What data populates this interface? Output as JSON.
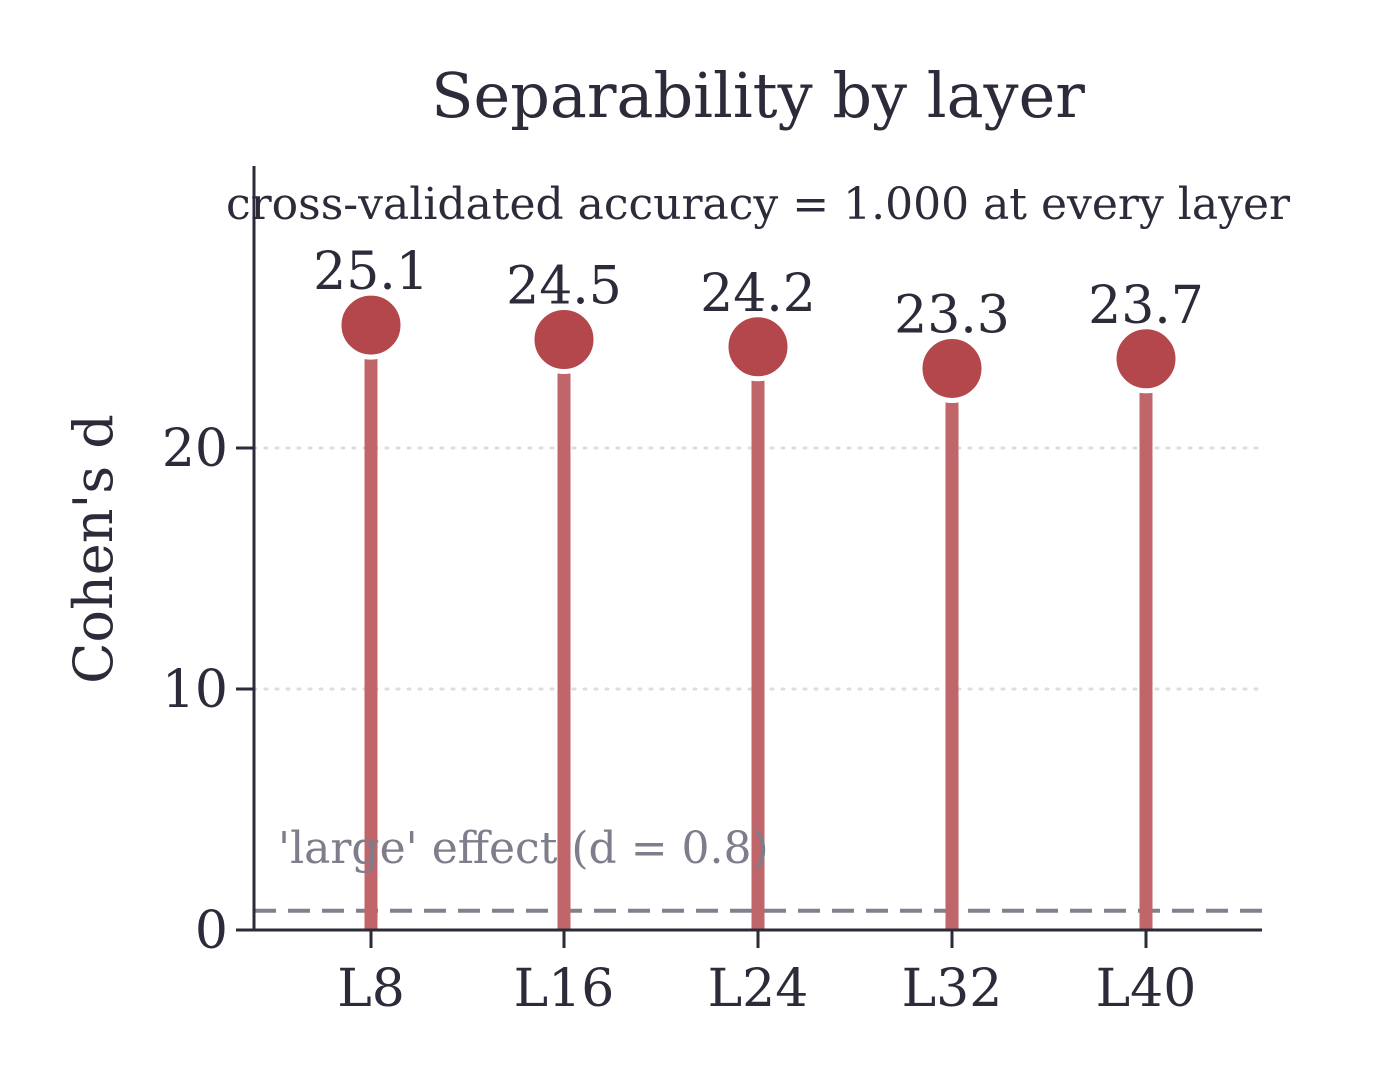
{
  "chart_data": {
    "type": "lollipop",
    "title": "Separability by layer",
    "subtitle": "cross-validated accuracy = 1.000 at every layer",
    "xlabel": "",
    "ylabel": "Cohen's d",
    "categories": [
      "L8",
      "L16",
      "L24",
      "L32",
      "L40"
    ],
    "values": [
      25.1,
      24.5,
      24.2,
      23.3,
      23.7
    ],
    "data_labels": [
      "25.1",
      "24.5",
      "24.2",
      "23.3",
      "23.7"
    ],
    "ylim": [
      0,
      31.7
    ],
    "yticks": [
      0,
      10,
      20
    ],
    "ytick_labels": [
      "0",
      "10",
      "20"
    ],
    "grid": "y-dotted at ticks",
    "reference_line": {
      "value": 0.8,
      "label": "'large' effect (d = 0.8)",
      "style": "dashed"
    },
    "colors": {
      "stem": "#c0656a",
      "marker": "#b3474c",
      "reference": "#80808f",
      "axis": "#2b2b3a",
      "grid": "#dddddd"
    }
  }
}
